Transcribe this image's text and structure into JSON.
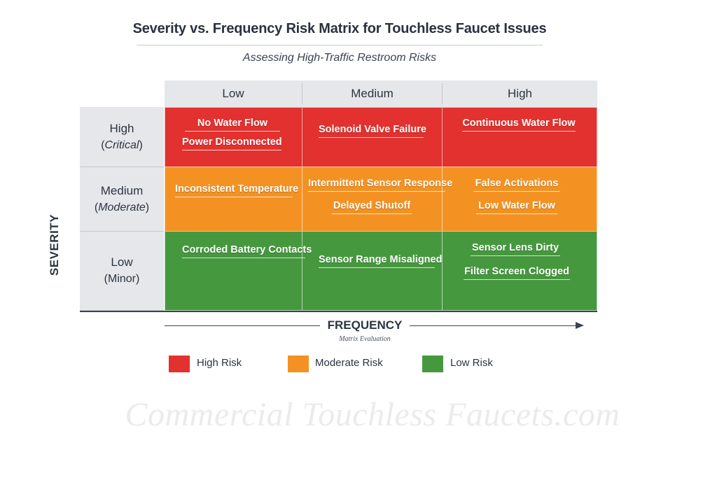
{
  "title": "Severity vs. Frequency Risk Matrix for Touchless Faucet Issues",
  "subtitle": "Assessing High-Traffic Restroom Risks",
  "columns": [
    "Low",
    "Medium",
    "High"
  ],
  "rows": [
    {
      "label": "High",
      "sub": "Critical",
      "sub_italic": true
    },
    {
      "label": "Medium",
      "sub": "Moderate",
      "sub_italic": true
    },
    {
      "label": "Low",
      "sub": "Minor",
      "sub_italic": false
    }
  ],
  "cells": [
    [
      "No Water Flow",
      "Power Disconnected"
    ],
    [
      "Solenoid Valve Failure"
    ],
    [
      "Continuous Water Flow"
    ],
    [
      "Inconsistent Temperature"
    ],
    [
      "Intermittent Sensor Response",
      "Delayed Shutoff"
    ],
    [
      "False Activations",
      "Low Water Flow"
    ],
    [
      "Corroded Battery Contacts"
    ],
    [
      "Sensor Range Misaligned"
    ],
    [
      "Sensor Lens Dirty",
      "Filter Screen Clogged"
    ]
  ],
  "y_axis_label": "SEVERITY",
  "x_axis_label": "FREQUENCY",
  "x_axis_sublabel": "Matrix Evaluation",
  "legend": [
    {
      "label": "High Risk",
      "color": "#e2312e"
    },
    {
      "label": "Moderate Risk",
      "color": "#f39223"
    },
    {
      "label": "Low Risk",
      "color": "#46983f"
    }
  ],
  "watermark": "Commercial Touchless Faucets.com"
}
